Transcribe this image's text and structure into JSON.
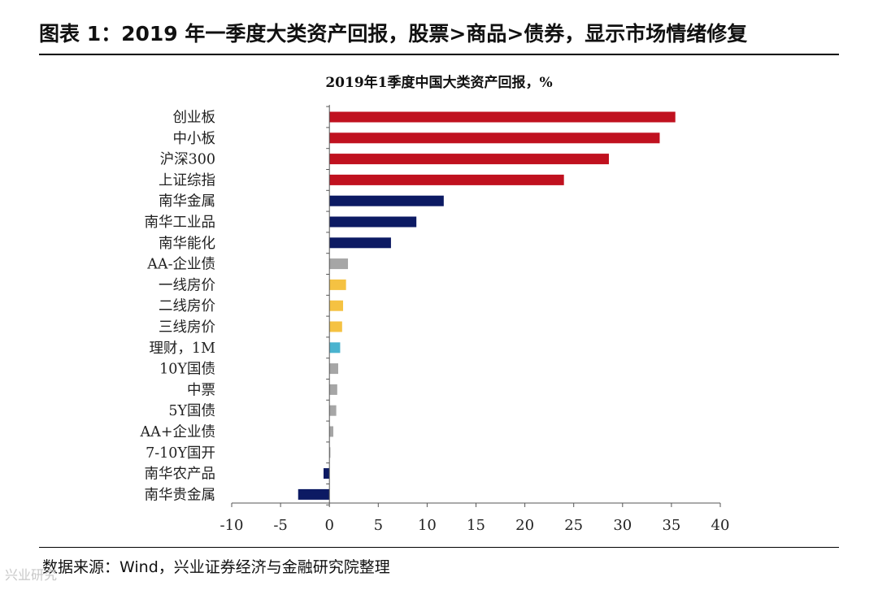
{
  "figure": {
    "title": "图表 1：2019 年一季度大类资产回报，股票>商品>债券，显示市场情绪修复",
    "source": "数据来源：Wind，兴业证券经济与金融研究院整理",
    "watermark": "兴业研究"
  },
  "chart_data": {
    "type": "bar",
    "orientation": "horizontal",
    "title": "2019年1季度中国大类资产回报，%",
    "xlabel": "",
    "ylabel": "",
    "xlim": [
      -10,
      40
    ],
    "xticks": [
      -10,
      -5,
      0,
      5,
      10,
      15,
      20,
      25,
      30,
      35,
      40
    ],
    "grid": false,
    "legend": "none",
    "categories": [
      "创业板",
      "中小板",
      "沪深300",
      "上证综指",
      "南华金属",
      "南华工业品",
      "南华能化",
      "AA-企业债",
      "一线房价",
      "二线房价",
      "三线房价",
      "理财，1M",
      "10Y国债",
      "中票",
      "5Y国债",
      "AA+企业债",
      "7-10Y国开",
      "南华农产品",
      "南华贵金属"
    ],
    "values": [
      35.4,
      33.8,
      28.6,
      24.0,
      11.7,
      8.9,
      6.3,
      1.9,
      1.7,
      1.4,
      1.3,
      1.1,
      0.9,
      0.8,
      0.7,
      0.4,
      0.1,
      -0.6,
      -3.2
    ],
    "colors": [
      "#c0111f",
      "#c0111f",
      "#c0111f",
      "#c0111f",
      "#0c1a63",
      "#0c1a63",
      "#0c1a63",
      "#a6a6a6",
      "#f5c242",
      "#f5c242",
      "#f5c242",
      "#4ab3cf",
      "#a6a6a6",
      "#a6a6a6",
      "#a6a6a6",
      "#a6a6a6",
      "#a6a6a6",
      "#0c1a63",
      "#0c1a63"
    ]
  }
}
